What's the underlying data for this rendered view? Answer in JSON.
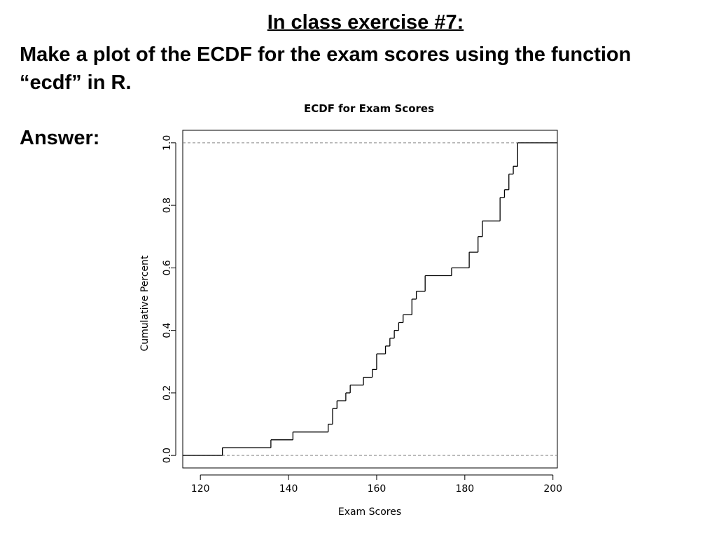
{
  "slide": {
    "title": "In class exercise #7:",
    "instruction": "Make a plot of the ECDF for the exam scores using the function “ecdf” in R.",
    "answer_label": "Answer:"
  },
  "chart_data": {
    "type": "line",
    "title": "ECDF for Exam Scores",
    "xlabel": "Exam Scores",
    "ylabel": "Cumulative Percent",
    "xlim": [
      116,
      201
    ],
    "ylim": [
      -0.04,
      1.04
    ],
    "xticks": [
      120,
      140,
      160,
      180,
      200
    ],
    "yticks": [
      0.0,
      0.2,
      0.4,
      0.6,
      0.8,
      1.0
    ],
    "xtick_labels": [
      "120",
      "140",
      "160",
      "180",
      "200"
    ],
    "ytick_labels": [
      "0.0",
      "0.2",
      "0.4",
      "0.6",
      "0.8",
      "1.0"
    ],
    "reference_lines": [
      0,
      1
    ],
    "grid": false,
    "line_color": "#000000",
    "reference_line_color": "#888888",
    "x": [
      125,
      136,
      141,
      149,
      150,
      151,
      153,
      154,
      157,
      159,
      160,
      162,
      163,
      164,
      165,
      166,
      168,
      169,
      171,
      177,
      181,
      183,
      184,
      188,
      189,
      190,
      191,
      192
    ],
    "y": [
      0.025,
      0.05,
      0.075,
      0.1,
      0.15,
      0.175,
      0.2,
      0.225,
      0.25,
      0.275,
      0.325,
      0.35,
      0.375,
      0.4,
      0.425,
      0.45,
      0.5,
      0.525,
      0.575,
      0.6,
      0.65,
      0.7,
      0.75,
      0.825,
      0.85,
      0.9,
      0.925,
      1.0
    ]
  }
}
